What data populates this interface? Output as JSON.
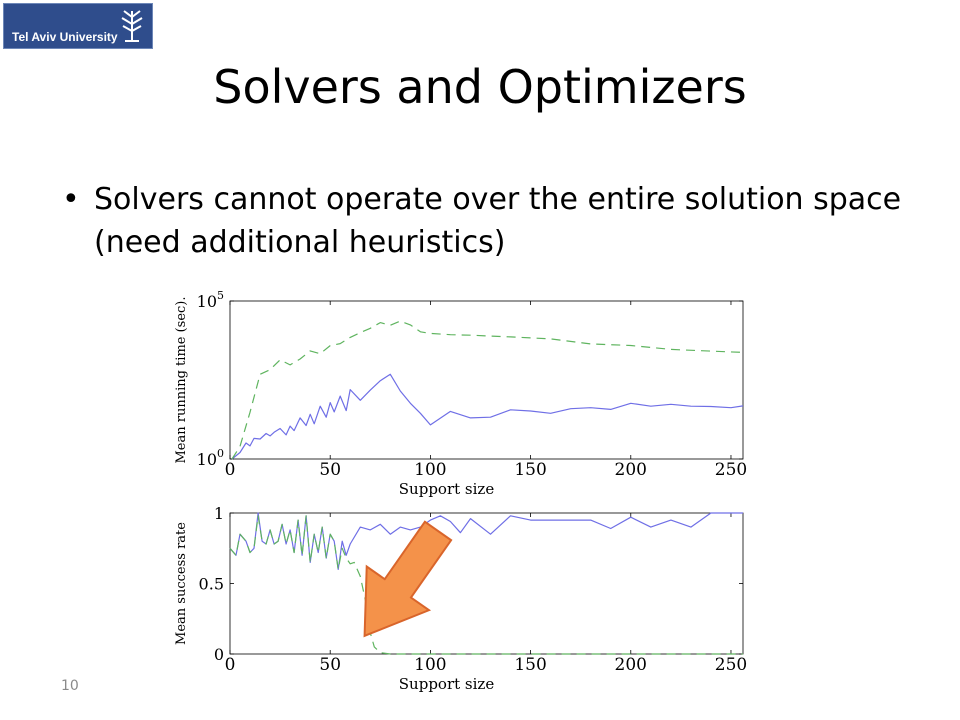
{
  "logo": {
    "text": "Tel Aviv University"
  },
  "slide": {
    "title": "Solvers and Optimizers",
    "bullets": [
      "Solvers cannot operate over the entire solution space (need additional heuristics)"
    ],
    "page_number": "10"
  },
  "colors": {
    "series_blue": "#6f6fe6",
    "series_green": "#5fb45f",
    "arrow_fill": "#f4924a",
    "arrow_stroke": "#d9652b",
    "logo_bg": "#2f4d8c"
  },
  "chart_data": [
    {
      "type": "line",
      "ylabel": "Mean running time (sec).",
      "xlabel": "Support size",
      "yscale": "log",
      "xlim": [
        0,
        256
      ],
      "ylim": [
        1,
        100000
      ],
      "xticks": [
        0,
        50,
        100,
        150,
        200,
        250
      ],
      "yticks": [
        {
          "value": 1,
          "base": "10",
          "exp": "0"
        },
        {
          "value": 100000,
          "base": "10",
          "exp": "5"
        }
      ],
      "series": [
        {
          "color": "blue",
          "style": "solid",
          "x": [
            1,
            5,
            8,
            10,
            12,
            15,
            18,
            20,
            22,
            25,
            28,
            30,
            32,
            35,
            38,
            40,
            42,
            45,
            48,
            50,
            52,
            55,
            58,
            60,
            65,
            70,
            75,
            80,
            85,
            90,
            95,
            100,
            110,
            120,
            130,
            140,
            150,
            160,
            170,
            180,
            190,
            200,
            210,
            220,
            230,
            240,
            250,
            256
          ],
          "y": [
            1,
            1.6,
            3.2,
            2.6,
            4.5,
            4.3,
            6.4,
            5.4,
            7.0,
            9.2,
            5.8,
            11,
            7.9,
            20,
            11.5,
            26,
            13,
            47,
            21,
            61,
            31,
            98,
            34,
            157,
            72,
            151,
            300,
            480,
            142,
            58,
            28,
            12,
            32,
            20,
            21,
            36,
            33,
            28,
            39,
            42,
            37,
            58,
            47,
            54,
            47,
            46,
            42,
            48
          ]
        },
        {
          "color": "green",
          "style": "dashed",
          "x": [
            1,
            5,
            10,
            15,
            20,
            25,
            30,
            35,
            40,
            45,
            50,
            55,
            60,
            65,
            70,
            75,
            80,
            85,
            90,
            95,
            100,
            110,
            120,
            140,
            160,
            180,
            200,
            220,
            240,
            256
          ],
          "y": [
            1,
            2.5,
            30,
            480,
            670,
            1380,
            950,
            1460,
            2640,
            2150,
            3870,
            4490,
            7060,
            10000,
            13700,
            20700,
            17000,
            23200,
            17500,
            10600,
            9400,
            8600,
            8250,
            7300,
            6300,
            4400,
            3900,
            2940,
            2590,
            2360
          ]
        }
      ]
    },
    {
      "type": "line",
      "ylabel": "Mean success rate",
      "xlabel": "Support size",
      "xlim": [
        0,
        256
      ],
      "ylim": [
        0,
        1
      ],
      "xticks": [
        0,
        50,
        100,
        150,
        200,
        250
      ],
      "yticks": [
        0,
        0.5,
        1
      ],
      "series": [
        {
          "color": "blue",
          "style": "solid",
          "x": [
            0,
            3,
            5,
            8,
            10,
            12,
            14,
            16,
            18,
            20,
            22,
            24,
            26,
            28,
            30,
            32,
            34,
            36,
            38,
            40,
            42,
            44,
            46,
            48,
            50,
            52,
            54,
            56,
            58,
            60,
            65,
            70,
            75,
            80,
            85,
            90,
            95,
            100,
            105,
            110,
            115,
            120,
            130,
            140,
            150,
            160,
            170,
            180,
            190,
            200,
            210,
            220,
            230,
            240,
            250,
            256
          ],
          "y": [
            0.75,
            0.7,
            0.85,
            0.8,
            0.72,
            0.75,
            1.0,
            0.8,
            0.78,
            0.88,
            0.78,
            0.8,
            0.92,
            0.78,
            0.88,
            0.72,
            0.95,
            0.7,
            0.98,
            0.65,
            0.85,
            0.72,
            0.9,
            0.68,
            0.85,
            0.8,
            0.6,
            0.8,
            0.7,
            0.78,
            0.9,
            0.88,
            0.92,
            0.85,
            0.9,
            0.88,
            0.9,
            0.95,
            0.98,
            0.94,
            0.86,
            0.96,
            0.85,
            0.98,
            0.95,
            0.95,
            0.95,
            0.95,
            0.89,
            0.97,
            0.9,
            0.95,
            0.9,
            1.0,
            1.0,
            1.0
          ]
        },
        {
          "color": "green",
          "style": "dashed",
          "x": [
            0,
            3,
            5,
            8,
            10,
            12,
            14,
            16,
            18,
            20,
            22,
            24,
            26,
            28,
            30,
            32,
            34,
            36,
            38,
            40,
            42,
            44,
            46,
            48,
            50,
            52,
            54,
            56,
            58,
            60,
            62,
            65,
            68,
            70,
            72,
            75,
            80,
            100,
            150,
            200,
            256
          ],
          "y": [
            0.75,
            0.7,
            0.85,
            0.8,
            0.72,
            0.75,
            0.98,
            0.8,
            0.78,
            0.88,
            0.78,
            0.8,
            0.92,
            0.78,
            0.88,
            0.72,
            0.95,
            0.7,
            0.98,
            0.65,
            0.85,
            0.72,
            0.9,
            0.68,
            0.85,
            0.8,
            0.6,
            0.75,
            0.68,
            0.64,
            0.65,
            0.55,
            0.35,
            0.15,
            0.05,
            0.01,
            0.0,
            0.0,
            0.0,
            0.0,
            0.0
          ]
        }
      ]
    }
  ]
}
